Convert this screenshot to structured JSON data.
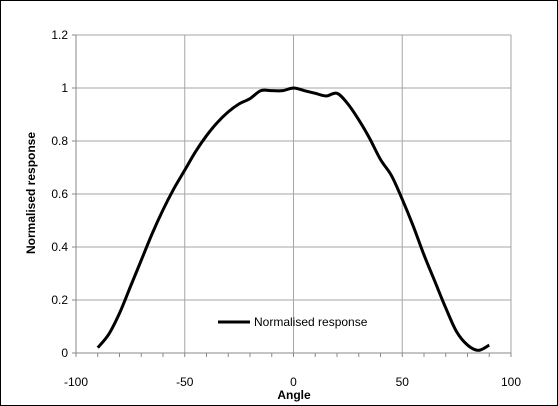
{
  "chart_data": {
    "type": "line",
    "title": "",
    "xlabel": "Angle",
    "ylabel": "Normalised response",
    "xlim": [
      -100,
      100
    ],
    "ylim": [
      0,
      1.2
    ],
    "xticks": [
      -100,
      -50,
      0,
      50,
      100
    ],
    "yticks": [
      0,
      0.2,
      0.4,
      0.6,
      0.8,
      1,
      1.2
    ],
    "xtick_labels": [
      "-100",
      "-50",
      "0",
      "50",
      "100"
    ],
    "ytick_labels": [
      "0",
      "0.2",
      "0.4",
      "0.6",
      "0.8",
      "1",
      "1.2"
    ],
    "grid": true,
    "legend": {
      "position": "bottom-center",
      "entries": [
        "Normalised response"
      ]
    },
    "series": [
      {
        "name": "Normalised response",
        "color": "#000000",
        "x": [
          -90,
          -85,
          -80,
          -75,
          -70,
          -65,
          -60,
          -55,
          -50,
          -45,
          -40,
          -35,
          -30,
          -25,
          -20,
          -15,
          -10,
          -5,
          0,
          5,
          10,
          15,
          20,
          25,
          30,
          35,
          40,
          45,
          50,
          55,
          60,
          65,
          70,
          75,
          80,
          85,
          90
        ],
        "y": [
          0.02,
          0.07,
          0.15,
          0.25,
          0.35,
          0.45,
          0.54,
          0.62,
          0.69,
          0.76,
          0.82,
          0.87,
          0.91,
          0.94,
          0.96,
          0.99,
          0.99,
          0.99,
          1.0,
          0.99,
          0.98,
          0.97,
          0.98,
          0.94,
          0.88,
          0.81,
          0.73,
          0.67,
          0.58,
          0.48,
          0.37,
          0.27,
          0.17,
          0.08,
          0.03,
          0.01,
          0.03
        ]
      }
    ]
  }
}
